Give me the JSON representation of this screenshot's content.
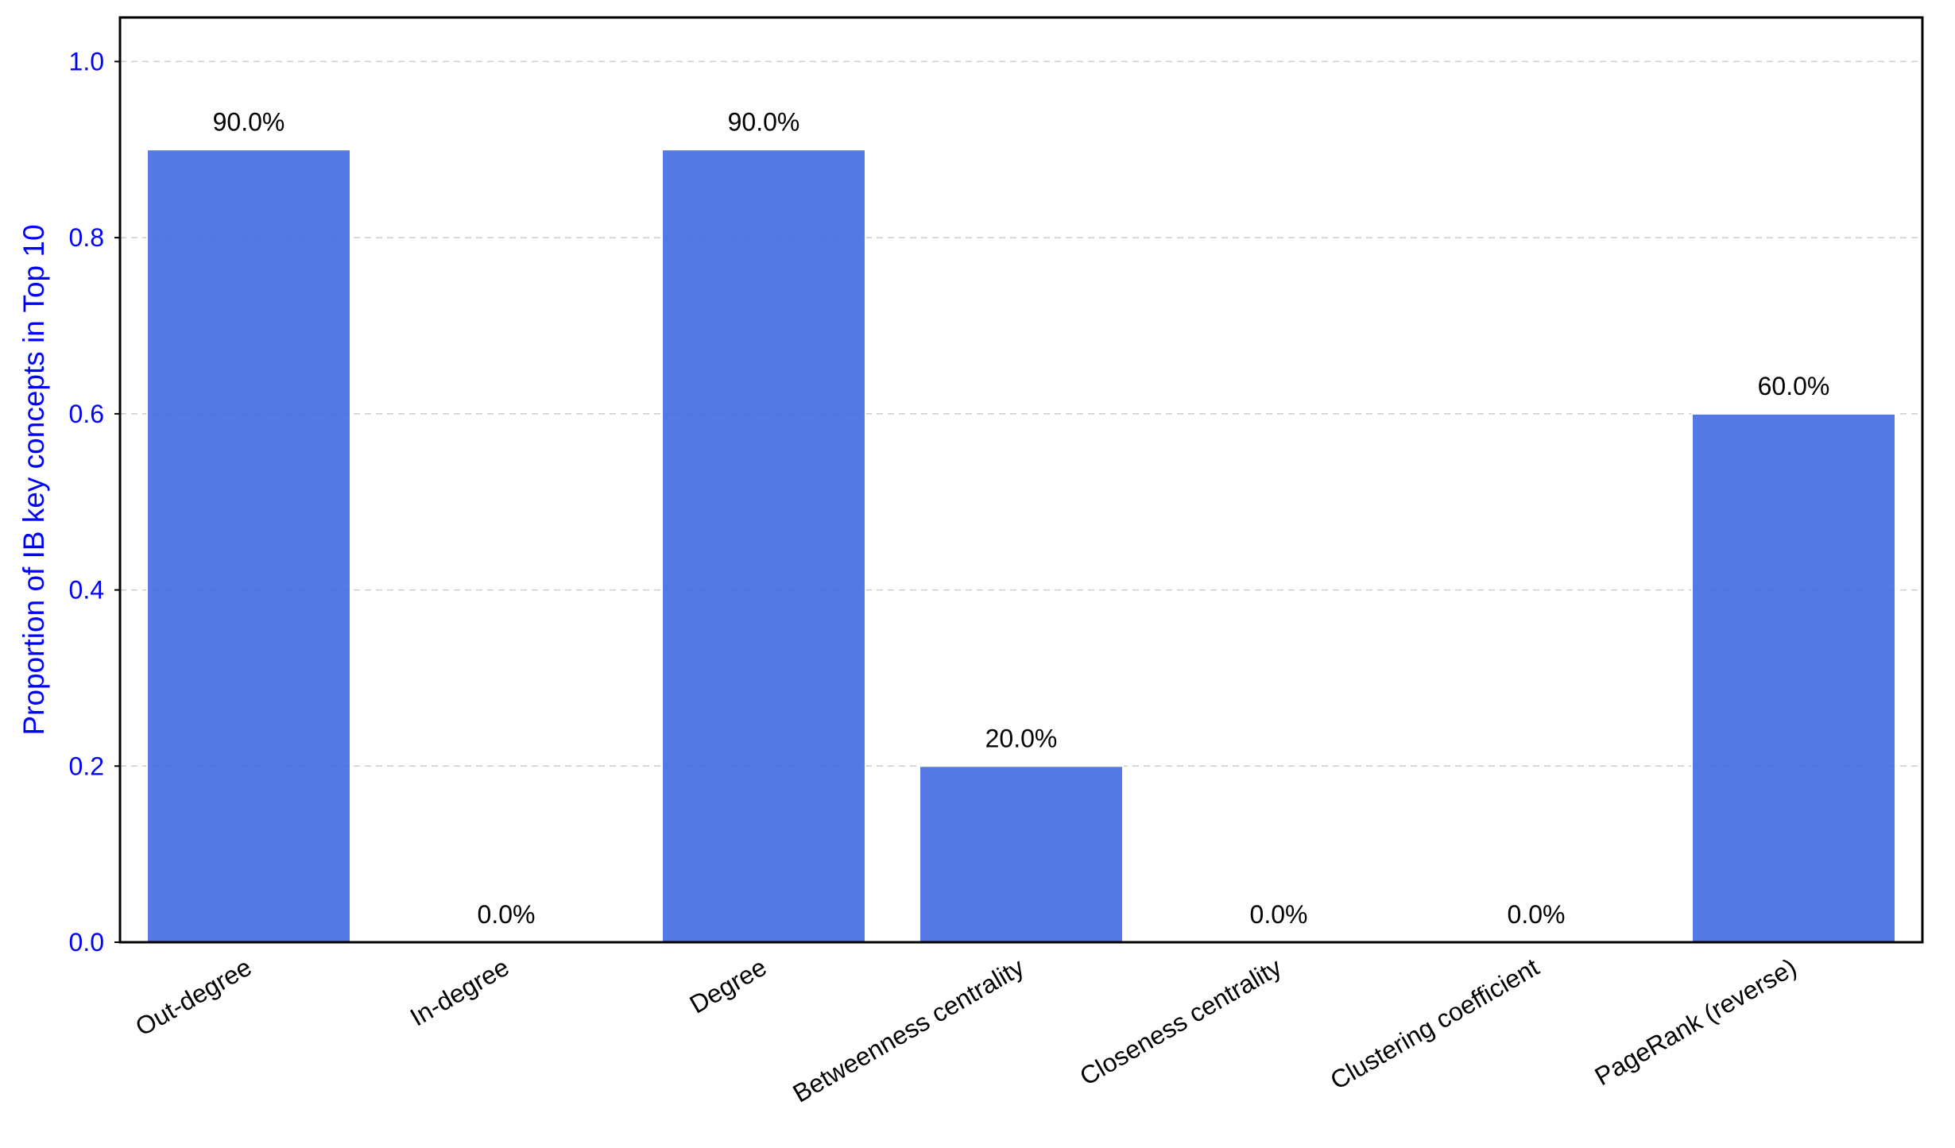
{
  "colors": {
    "bar": "#4169E1",
    "axis_text": "#0000FF",
    "grid": "#cccccc",
    "frame": "#000000",
    "label_text": "#000000"
  },
  "chart_data": {
    "type": "bar",
    "title": "",
    "xlabel": "",
    "ylabel": "Proportion of IB key concepts in Top 10",
    "categories": [
      "Out-degree",
      "In-degree",
      "Degree",
      "Betweenness centrality",
      "Closeness centrality",
      "Clustering coefficient",
      "PageRank (reverse)"
    ],
    "values": [
      0.9,
      0.0,
      0.9,
      0.2,
      0.0,
      0.0,
      0.6
    ],
    "data_labels": [
      "90.0%",
      "0.0%",
      "90.0%",
      "20.0%",
      "0.0%",
      "0.0%",
      "60.0%"
    ],
    "ylim": [
      0,
      1.05
    ],
    "yticks": [
      0.0,
      0.2,
      0.4,
      0.6,
      0.8,
      1.0
    ],
    "ytick_labels": [
      "0.0",
      "0.2",
      "0.4",
      "0.6",
      "0.8",
      "1.0"
    ],
    "grid": "y-dashed",
    "legend": "none"
  }
}
